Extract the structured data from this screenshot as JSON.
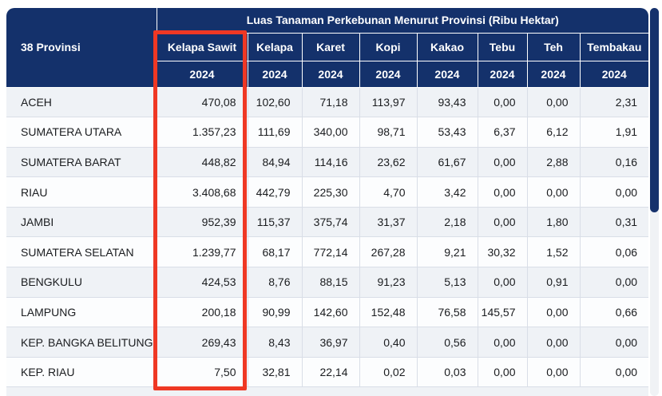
{
  "table": {
    "title": "Luas Tanaman Perkebunan Menurut Provinsi (Ribu Hektar)",
    "corner_header": "38 Provinsi",
    "columns": [
      {
        "label": "Kelapa Sawit",
        "year": "2024",
        "highlighted": true
      },
      {
        "label": "Kelapa",
        "year": "2024",
        "highlighted": false
      },
      {
        "label": "Karet",
        "year": "2024",
        "highlighted": false
      },
      {
        "label": "Kopi",
        "year": "2024",
        "highlighted": false
      },
      {
        "label": "Kakao",
        "year": "2024",
        "highlighted": false
      },
      {
        "label": "Tebu",
        "year": "2024",
        "highlighted": false
      },
      {
        "label": "Teh",
        "year": "2024",
        "highlighted": false
      },
      {
        "label": "Tembakau",
        "year": "2024",
        "highlighted": false
      }
    ],
    "rows": [
      {
        "province": "ACEH",
        "values": [
          "470,08",
          "102,60",
          "71,18",
          "113,97",
          "93,43",
          "0,00",
          "0,00",
          "2,31"
        ]
      },
      {
        "province": "SUMATERA UTARA",
        "values": [
          "1.357,23",
          "111,69",
          "340,00",
          "98,71",
          "53,43",
          "6,37",
          "6,12",
          "1,91"
        ]
      },
      {
        "province": "SUMATERA BARAT",
        "values": [
          "448,82",
          "84,94",
          "114,16",
          "23,62",
          "61,67",
          "0,00",
          "2,88",
          "0,16"
        ]
      },
      {
        "province": "RIAU",
        "values": [
          "3.408,68",
          "442,79",
          "225,30",
          "4,70",
          "3,42",
          "0,00",
          "0,00",
          "0,00"
        ]
      },
      {
        "province": "JAMBI",
        "values": [
          "952,39",
          "115,37",
          "375,74",
          "31,37",
          "2,18",
          "0,00",
          "1,80",
          "0,31"
        ]
      },
      {
        "province": "SUMATERA SELATAN",
        "values": [
          "1.239,77",
          "68,17",
          "772,14",
          "267,28",
          "9,21",
          "30,32",
          "1,52",
          "0,06"
        ]
      },
      {
        "province": "BENGKULU",
        "values": [
          "424,53",
          "8,76",
          "88,15",
          "91,23",
          "5,13",
          "0,00",
          "0,91",
          "0,00"
        ]
      },
      {
        "province": "LAMPUNG",
        "values": [
          "200,18",
          "90,99",
          "142,60",
          "152,48",
          "76,58",
          "145,57",
          "0,00",
          "0,66"
        ]
      },
      {
        "province": "KEP. BANGKA BELITUNG",
        "values": [
          "269,43",
          "8,43",
          "36,97",
          "0,40",
          "0,56",
          "0,00",
          "0,00",
          "0,00"
        ]
      },
      {
        "province": "KEP. RIAU",
        "values": [
          "7,50",
          "32,81",
          "22,14",
          "0,02",
          "0,03",
          "0,00",
          "0,00",
          "0,00"
        ]
      }
    ]
  },
  "colors": {
    "header_bg": "#14316B",
    "header_text": "#FFFFFF",
    "highlight_border": "#EF3824",
    "row_stripe": "#EFF2F6",
    "row_plain": "#FCFDFE",
    "cell_border": "#D9DEE7",
    "body_text": "#1A1C1F",
    "scrollbar_thumb": "#16316C",
    "scrollbar_track": "#F0F2F5"
  }
}
